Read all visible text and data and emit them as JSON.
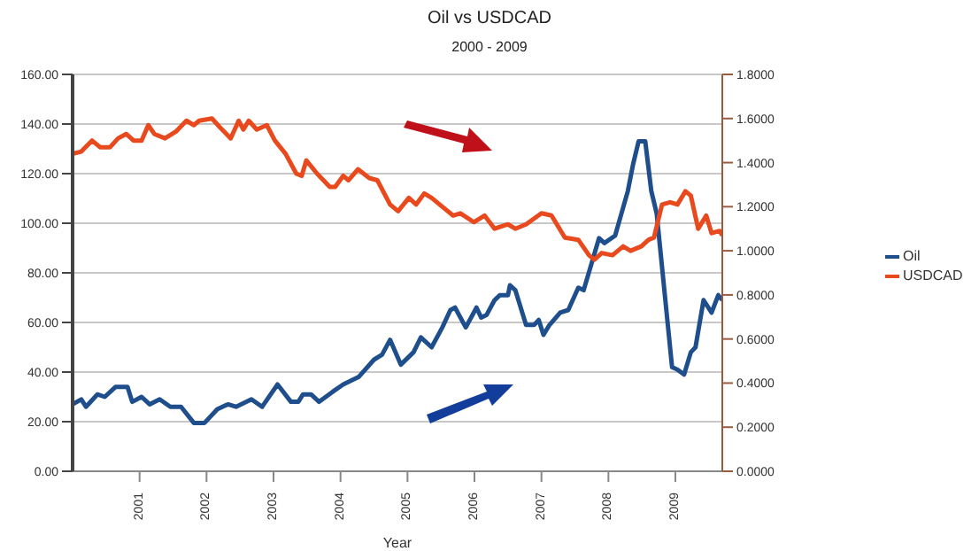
{
  "chart_data": {
    "type": "line",
    "title": "Oil vs USDCAD",
    "subtitle": "2000 - 2009",
    "xlabel": "Year",
    "xlim": [
      2000,
      2009.7
    ],
    "xticks": [
      2001,
      2002,
      2003,
      2004,
      2005,
      2006,
      2007,
      2008,
      2009
    ],
    "ylim": [
      0,
      160
    ],
    "yticks": [
      {
        "value": 0,
        "label": "0.00"
      },
      {
        "value": 20,
        "label": "20.00"
      },
      {
        "value": 40,
        "label": "40.00"
      },
      {
        "value": 60,
        "label": "60.00"
      },
      {
        "value": 80,
        "label": "80.00"
      },
      {
        "value": 100,
        "label": "100.00"
      },
      {
        "value": 120,
        "label": "120.00"
      },
      {
        "value": 140,
        "label": "140.00"
      },
      {
        "value": 160,
        "label": "160.00"
      }
    ],
    "y2lim": [
      0,
      1.8
    ],
    "y2ticks": [
      {
        "value": 0,
        "label": "0.0000"
      },
      {
        "value": 0.2,
        "label": "0.2000"
      },
      {
        "value": 0.4,
        "label": "0.4000"
      },
      {
        "value": 0.6,
        "label": "0.6000"
      },
      {
        "value": 0.8,
        "label": "0.8000"
      },
      {
        "value": 1,
        "label": "1.0000"
      },
      {
        "value": 1.2,
        "label": "1.2000"
      },
      {
        "value": 1.4,
        "label": "1.4000"
      },
      {
        "value": 1.6,
        "label": "1.6000"
      },
      {
        "value": 1.8,
        "label": "1.8000"
      }
    ],
    "grid": "y",
    "legend": "right",
    "marker": "none",
    "series": [
      {
        "name": "Oil",
        "color": "#1f4e8c",
        "x": [
          2000.0,
          2000.13,
          2000.2,
          2000.37,
          2000.48,
          2000.64,
          2000.82,
          2000.89,
          2001.03,
          2001.15,
          2001.3,
          2001.46,
          2001.62,
          2001.81,
          2001.97,
          2002.16,
          2002.32,
          2002.44,
          2002.67,
          2002.83,
          2003.06,
          2003.26,
          2003.37,
          2003.44,
          2003.56,
          2003.68,
          2003.88,
          2004.04,
          2004.27,
          2004.5,
          2004.62,
          2004.74,
          2004.9,
          2005.09,
          2005.2,
          2005.36,
          2005.52,
          2005.64,
          2005.71,
          2005.87,
          2006.03,
          2006.1,
          2006.18,
          2006.3,
          2006.38,
          2006.5,
          2006.53,
          2006.61,
          2006.77,
          2006.89,
          2006.96,
          2007.03,
          2007.12,
          2007.28,
          2007.4,
          2007.55,
          2007.63,
          2007.86,
          2007.94,
          2008.1,
          2008.29,
          2008.37,
          2008.45,
          2008.55,
          2008.64,
          2008.72,
          2008.95,
          2009.03,
          2009.13,
          2009.23,
          2009.3,
          2009.42,
          2009.54,
          2009.64,
          2009.7
        ],
        "values": [
          27,
          29,
          26,
          31,
          30,
          34,
          34,
          28,
          30,
          27,
          29,
          26,
          26,
          19.5,
          19.5,
          25,
          27,
          26,
          29,
          26,
          35,
          28,
          28,
          31,
          31,
          28,
          32,
          35,
          38,
          45,
          47,
          53,
          43,
          48,
          54,
          50,
          58,
          65,
          66,
          58,
          66,
          62,
          63,
          69,
          71,
          71,
          75,
          73,
          59,
          59,
          61,
          55,
          59,
          64,
          65,
          74,
          73,
          94,
          92,
          95,
          113,
          124,
          133,
          133,
          113,
          104,
          42,
          41,
          39,
          48,
          50,
          69,
          64,
          71,
          69
        ]
      },
      {
        "name": "USDCAD",
        "color": "#e8491d",
        "axis": "y2",
        "x": [
          2000.0,
          2000.13,
          2000.29,
          2000.41,
          2000.56,
          2000.68,
          2000.8,
          2000.91,
          2001.03,
          2001.13,
          2001.22,
          2001.38,
          2001.54,
          2001.7,
          2001.81,
          2001.89,
          2002.08,
          2002.2,
          2002.36,
          2002.48,
          2002.55,
          2002.63,
          2002.75,
          2002.9,
          2003.02,
          2003.18,
          2003.34,
          2003.42,
          2003.49,
          2003.65,
          2003.84,
          2003.92,
          2004.04,
          2004.12,
          2004.26,
          2004.43,
          2004.55,
          2004.74,
          2004.86,
          2005.02,
          2005.13,
          2005.25,
          2005.36,
          2005.48,
          2005.68,
          2005.79,
          2005.99,
          2006.15,
          2006.3,
          2006.5,
          2006.61,
          2006.77,
          2007.0,
          2007.15,
          2007.35,
          2007.55,
          2007.71,
          2007.79,
          2007.9,
          2008.06,
          2008.22,
          2008.33,
          2008.49,
          2008.6,
          2008.68,
          2008.8,
          2008.92,
          2009.03,
          2009.15,
          2009.23,
          2009.34,
          2009.46,
          2009.54,
          2009.66,
          2009.7
        ],
        "values": [
          1.44,
          1.45,
          1.5,
          1.47,
          1.47,
          1.51,
          1.53,
          1.5,
          1.5,
          1.57,
          1.53,
          1.51,
          1.54,
          1.59,
          1.57,
          1.59,
          1.6,
          1.56,
          1.51,
          1.59,
          1.55,
          1.59,
          1.55,
          1.57,
          1.5,
          1.44,
          1.35,
          1.34,
          1.41,
          1.35,
          1.29,
          1.29,
          1.34,
          1.32,
          1.37,
          1.33,
          1.32,
          1.21,
          1.18,
          1.24,
          1.21,
          1.26,
          1.24,
          1.21,
          1.16,
          1.17,
          1.13,
          1.16,
          1.1,
          1.12,
          1.1,
          1.12,
          1.17,
          1.16,
          1.06,
          1.05,
          0.98,
          0.96,
          0.99,
          0.98,
          1.02,
          1.0,
          1.02,
          1.05,
          1.06,
          1.21,
          1.22,
          1.21,
          1.27,
          1.25,
          1.1,
          1.16,
          1.08,
          1.09,
          1.07
        ]
      }
    ]
  }
}
